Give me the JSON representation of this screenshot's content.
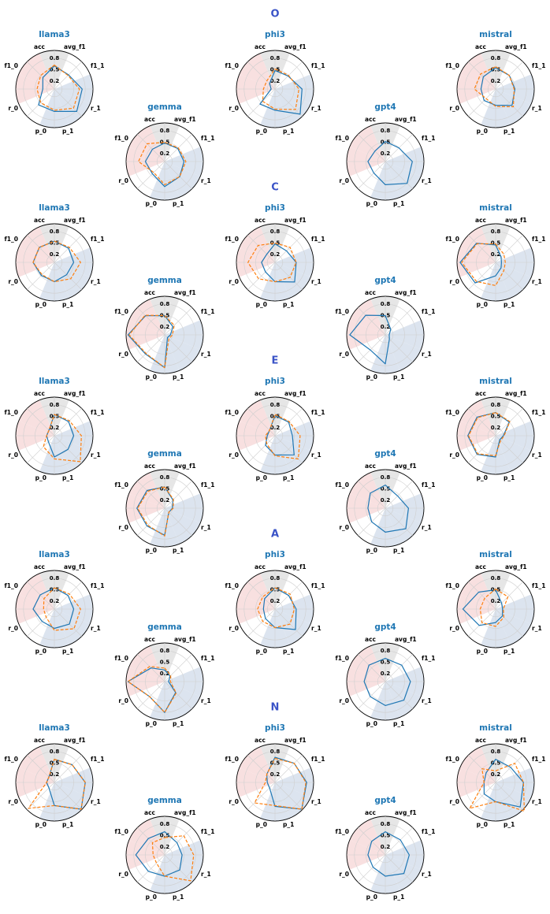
{
  "figure": {
    "axes": [
      "acc",
      "avg_f1",
      "f1_1",
      "r_1",
      "p_1",
      "p_0",
      "r_0",
      "f1_0"
    ],
    "ring_labels": [
      "0.8",
      "0.5",
      "0.2"
    ],
    "colors": {
      "title": "#1f77b4",
      "section_title": "#3a53c7",
      "line_solid": "#1f77b4",
      "line_dashed": "#ff7f0e",
      "wedge_top": "#e6e6e6",
      "wedge_right": "#dce4ef",
      "wedge_left": "#f8e0e0",
      "gridline": "#cfcfcf",
      "axis_label": "#000000"
    }
  },
  "chart_data": [
    {
      "section": "O",
      "rlim": [
        0,
        1
      ],
      "grid_rings": [
        0.2,
        0.5,
        0.8,
        1.0
      ],
      "subplots": [
        {
          "title": "llama3",
          "type": "radar",
          "series": [
            {
              "style": "solid",
              "values": [
                0.6,
                0.52,
                0.72,
                0.82,
                0.58,
                0.58,
                0.3,
                0.42
              ]
            },
            {
              "style": "dashed",
              "values": [
                0.62,
                0.5,
                0.65,
                0.7,
                0.55,
                0.5,
                0.45,
                0.5
              ]
            }
          ]
        },
        {
          "title": "phi3",
          "type": "radar",
          "series": [
            {
              "style": "solid",
              "values": [
                0.48,
                0.48,
                0.7,
                0.92,
                0.55,
                0.55,
                0.1,
                0.2
              ]
            },
            {
              "style": "dashed",
              "values": [
                0.52,
                0.5,
                0.62,
                0.75,
                0.52,
                0.45,
                0.3,
                0.3
              ]
            }
          ]
        },
        {
          "title": "mistral",
          "type": "radar",
          "series": [
            {
              "style": "solid",
              "values": [
                0.55,
                0.5,
                0.5,
                0.6,
                0.42,
                0.42,
                0.38,
                0.45
              ]
            },
            {
              "style": "dashed",
              "values": [
                0.58,
                0.5,
                0.48,
                0.65,
                0.45,
                0.35,
                0.55,
                0.55
              ]
            }
          ]
        },
        {
          "title": "gemma",
          "type": "radar",
          "series": [
            {
              "style": "solid",
              "values": [
                0.48,
                0.48,
                0.5,
                0.55,
                0.65,
                0.45,
                0.5,
                0.45
              ]
            },
            {
              "style": "dashed",
              "values": [
                0.5,
                0.5,
                0.55,
                0.55,
                0.6,
                0.4,
                0.68,
                0.65
              ]
            }
          ]
        },
        {
          "title": "gpt4",
          "type": "radar",
          "series": [
            {
              "style": "solid",
              "values": [
                0.52,
                0.5,
                0.7,
                0.8,
                0.6,
                0.42,
                0.45,
                0.38
              ]
            }
          ]
        }
      ]
    },
    {
      "section": "C",
      "rlim": [
        0,
        1
      ],
      "grid_rings": [
        0.2,
        0.5,
        0.8,
        1.0
      ],
      "subplots": [
        {
          "title": "llama3",
          "type": "radar",
          "series": [
            {
              "style": "solid",
              "values": [
                0.55,
                0.52,
                0.5,
                0.45,
                0.5,
                0.48,
                0.55,
                0.55
              ]
            },
            {
              "style": "dashed",
              "values": [
                0.55,
                0.55,
                0.68,
                0.6,
                0.5,
                0.45,
                0.55,
                0.55
              ]
            }
          ]
        },
        {
          "title": "phi3",
          "type": "radar",
          "series": [
            {
              "style": "solid",
              "values": [
                0.48,
                0.42,
                0.55,
                0.72,
                0.5,
                0.35,
                0.35,
                0.3
              ]
            },
            {
              "style": "dashed",
              "values": [
                0.5,
                0.55,
                0.55,
                0.55,
                0.5,
                0.6,
                0.7,
                0.62
              ]
            }
          ]
        },
        {
          "title": "mistral",
          "type": "radar",
          "series": [
            {
              "style": "solid",
              "values": [
                0.45,
                0.2,
                0.15,
                0.2,
                0.35,
                0.75,
                0.92,
                0.7
              ]
            },
            {
              "style": "dashed",
              "values": [
                0.48,
                0.3,
                0.25,
                0.3,
                0.6,
                0.7,
                0.88,
                0.68
              ]
            }
          ]
        },
        {
          "title": "gemma",
          "type": "radar",
          "series": [
            {
              "style": "solid",
              "values": [
                0.5,
                0.3,
                0.15,
                0.1,
                0.85,
                0.7,
                0.95,
                0.7
              ]
            },
            {
              "style": "dashed",
              "values": [
                0.5,
                0.35,
                0.2,
                0.15,
                0.85,
                0.68,
                0.92,
                0.72
              ]
            }
          ]
        },
        {
          "title": "gpt4",
          "type": "radar",
          "series": [
            {
              "style": "solid",
              "values": [
                0.5,
                0.2,
                0.1,
                0.15,
                0.75,
                0.55,
                0.92,
                0.72
              ]
            }
          ]
        }
      ]
    },
    {
      "section": "E",
      "rlim": [
        0,
        1
      ],
      "grid_rings": [
        0.2,
        0.5,
        0.8,
        1.0
      ],
      "subplots": [
        {
          "title": "llama3",
          "type": "radar",
          "series": [
            {
              "style": "solid",
              "values": [
                0.55,
                0.52,
                0.5,
                0.5,
                0.55,
                0.22,
                0.2,
                0.2
              ]
            },
            {
              "style": "dashed",
              "values": [
                0.55,
                0.55,
                0.7,
                0.95,
                0.6,
                0.4,
                0.2,
                0.2
              ]
            }
          ]
        },
        {
          "title": "phi3",
          "type": "radar",
          "series": [
            {
              "style": "solid",
              "values": [
                0.52,
                0.5,
                0.45,
                0.7,
                0.5,
                0.35,
                0.2,
                0.2
              ]
            },
            {
              "style": "dashed",
              "values": [
                0.55,
                0.52,
                0.65,
                0.85,
                0.52,
                0.3,
                0.25,
                0.2
              ]
            }
          ]
        },
        {
          "title": "mistral",
          "type": "radar",
          "series": [
            {
              "style": "solid",
              "values": [
                0.6,
                0.5,
                0.2,
                0.15,
                0.55,
                0.68,
                0.72,
                0.68
              ]
            },
            {
              "style": "dashed",
              "values": [
                0.6,
                0.52,
                0.22,
                0.18,
                0.52,
                0.66,
                0.7,
                0.66
              ]
            }
          ]
        },
        {
          "title": "gemma",
          "type": "radar",
          "series": [
            {
              "style": "solid",
              "values": [
                0.55,
                0.3,
                0.2,
                0.15,
                0.7,
                0.65,
                0.72,
                0.65
              ]
            },
            {
              "style": "dashed",
              "values": [
                0.55,
                0.32,
                0.22,
                0.15,
                0.72,
                0.62,
                0.7,
                0.62
              ]
            }
          ]
        },
        {
          "title": "gpt4",
          "type": "radar",
          "series": [
            {
              "style": "solid",
              "values": [
                0.6,
                0.45,
                0.6,
                0.75,
                0.62,
                0.5,
                0.45,
                0.55
              ]
            }
          ]
        }
      ]
    },
    {
      "section": "A",
      "rlim": [
        0,
        1
      ],
      "grid_rings": [
        0.2,
        0.5,
        0.8,
        1.0
      ],
      "subplots": [
        {
          "title": "llama3",
          "type": "radar",
          "series": [
            {
              "style": "solid",
              "values": [
                0.55,
                0.5,
                0.5,
                0.55,
                0.5,
                0.45,
                0.55,
                0.52
              ]
            },
            {
              "style": "dashed",
              "values": [
                0.55,
                0.55,
                0.68,
                0.72,
                0.55,
                0.3,
                0.28,
                0.38
              ]
            }
          ]
        },
        {
          "title": "phi3",
          "type": "radar",
          "series": [
            {
              "style": "solid",
              "values": [
                0.55,
                0.5,
                0.55,
                0.75,
                0.48,
                0.35,
                0.3,
                0.38
              ]
            },
            {
              "style": "dashed",
              "values": [
                0.55,
                0.55,
                0.5,
                0.55,
                0.48,
                0.45,
                0.45,
                0.45
              ]
            }
          ]
        },
        {
          "title": "mistral",
          "type": "radar",
          "series": [
            {
              "style": "solid",
              "values": [
                0.5,
                0.22,
                0.18,
                0.25,
                0.35,
                0.6,
                0.85,
                0.62
              ]
            },
            {
              "style": "dashed",
              "values": [
                0.52,
                0.45,
                0.2,
                0.3,
                0.45,
                0.5,
                0.4,
                0.4
              ]
            }
          ]
        },
        {
          "title": "gemma",
          "type": "radar",
          "series": [
            {
              "style": "solid",
              "values": [
                0.3,
                0.2,
                0.1,
                0.4,
                0.8,
                0.55,
                0.95,
                0.5
              ]
            },
            {
              "style": "dashed",
              "values": [
                0.35,
                0.22,
                0.15,
                0.42,
                0.8,
                0.55,
                0.95,
                0.55
              ]
            }
          ]
        },
        {
          "title": "gpt4",
          "type": "radar",
          "series": [
            {
              "style": "solid",
              "values": [
                0.6,
                0.6,
                0.65,
                0.68,
                0.62,
                0.55,
                0.55,
                0.6
              ]
            }
          ]
        }
      ]
    },
    {
      "section": "N",
      "rlim": [
        0,
        1
      ],
      "grid_rings": [
        0.2,
        0.5,
        0.8,
        1.0
      ],
      "subplots": [
        {
          "title": "llama3",
          "type": "radar",
          "series": [
            {
              "style": "solid",
              "values": [
                0.6,
                0.65,
                0.8,
                0.98,
                0.6,
                0.2,
                0.2,
                0.2
              ]
            },
            {
              "style": "dashed",
              "values": [
                0.6,
                0.65,
                0.8,
                0.98,
                0.6,
                0.95,
                0.2,
                0.2
              ]
            }
          ]
        },
        {
          "title": "phi3",
          "type": "radar",
          "series": [
            {
              "style": "solid",
              "values": [
                0.65,
                0.7,
                0.82,
                0.98,
                0.62,
                0.2,
                0.2,
                0.3
              ]
            },
            {
              "style": "dashed",
              "values": [
                0.62,
                0.7,
                0.8,
                0.98,
                0.6,
                0.75,
                0.25,
                0.3
              ]
            }
          ]
        },
        {
          "title": "mistral",
          "type": "radar",
          "series": [
            {
              "style": "solid",
              "values": [
                0.6,
                0.55,
                0.72,
                0.9,
                0.5,
                0.42,
                0.3,
                0.35
              ]
            },
            {
              "style": "dashed",
              "values": [
                0.3,
                0.7,
                0.72,
                1.05,
                0.5,
                0.95,
                0.3,
                0.5
              ]
            }
          ]
        },
        {
          "title": "gemma",
          "type": "radar",
          "series": [
            {
              "style": "solid",
              "values": [
                0.6,
                0.45,
                0.45,
                0.55,
                0.55,
                0.6,
                0.75,
                0.6
              ]
            },
            {
              "style": "dashed",
              "values": [
                0.45,
                0.7,
                0.75,
                0.95,
                0.55,
                0.3,
                0.3,
                0.45
              ]
            }
          ]
        },
        {
          "title": "gpt4",
          "type": "radar",
          "series": [
            {
              "style": "solid",
              "values": [
                0.6,
                0.55,
                0.62,
                0.68,
                0.55,
                0.45,
                0.45,
                0.5
              ]
            }
          ]
        }
      ]
    }
  ]
}
